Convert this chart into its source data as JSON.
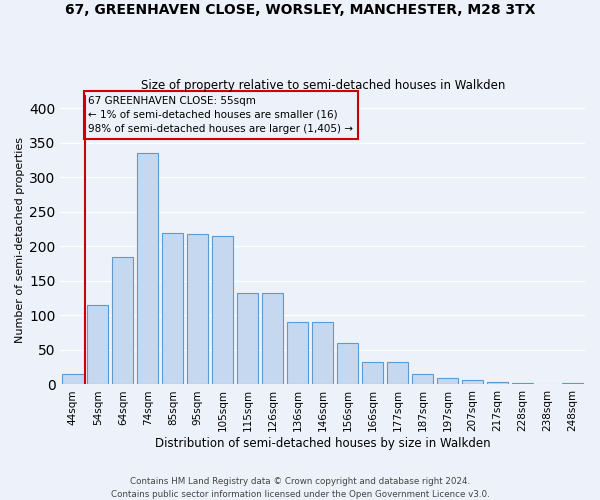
{
  "title": "67, GREENHAVEN CLOSE, WORSLEY, MANCHESTER, M28 3TX",
  "subtitle": "Size of property relative to semi-detached houses in Walkden",
  "xlabel": "Distribution of semi-detached houses by size in Walkden",
  "ylabel": "Number of semi-detached properties",
  "footnote": "Contains HM Land Registry data © Crown copyright and database right 2024.\nContains public sector information licensed under the Open Government Licence v3.0.",
  "bar_labels": [
    "44sqm",
    "54sqm",
    "64sqm",
    "74sqm",
    "85sqm",
    "95sqm",
    "105sqm",
    "115sqm",
    "126sqm",
    "136sqm",
    "146sqm",
    "156sqm",
    "166sqm",
    "177sqm",
    "187sqm",
    "197sqm",
    "207sqm",
    "217sqm",
    "228sqm",
    "238sqm",
    "248sqm"
  ],
  "bar_values": [
    15,
    115,
    185,
    335,
    220,
    218,
    215,
    132,
    132,
    90,
    90,
    60,
    33,
    33,
    15,
    9,
    6,
    4,
    2,
    0,
    2
  ],
  "bar_color": "#c5d8f0",
  "bar_edge_color": "#5b9bd5",
  "property_label": "67 GREENHAVEN CLOSE: 55sqm",
  "pct_smaller": 1,
  "count_smaller": 16,
  "pct_larger": 98,
  "count_larger": 1405,
  "vline_index": 1,
  "annotation_box_color": "#cc0000",
  "ylim": [
    0,
    420
  ],
  "yticks": [
    0,
    50,
    100,
    150,
    200,
    250,
    300,
    350,
    400
  ],
  "bg_color": "#edf2fa",
  "grid_color": "white"
}
